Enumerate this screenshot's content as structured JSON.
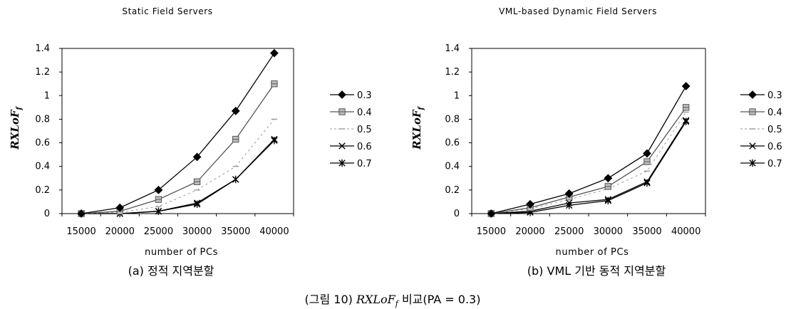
{
  "figure_caption": {
    "prefix": "(그림 10) ",
    "italic": "RXLoF",
    "sub": "f",
    "suffix": " 비교(PA = 0.3)"
  },
  "colors": {
    "s03": "#000000",
    "s04": "#777777",
    "s05": "#9a9a9a",
    "s06": "#000000",
    "s07": "#000000"
  },
  "chart_data": [
    {
      "type": "line",
      "title": "Static Field Servers",
      "caption": "(a) 정적 지역분할",
      "xlabel": "number of PCs",
      "ylabel": "RXLoF",
      "ylabel_sub": "f",
      "categories": [
        "15000",
        "20000",
        "25000",
        "30000",
        "35000",
        "40000"
      ],
      "yticks": [
        "0",
        "0.2",
        "0.4",
        "0.6",
        "0.8",
        "1",
        "1.2",
        "1.4"
      ],
      "ylim": [
        0,
        1.4
      ],
      "legend_position": "right",
      "series": [
        {
          "name": "0.3",
          "marker": "diamond",
          "values": [
            0,
            0.05,
            0.2,
            0.48,
            0.87,
            1.36
          ]
        },
        {
          "name": "0.4",
          "marker": "square",
          "values": [
            0,
            0.02,
            0.12,
            0.27,
            0.63,
            1.1
          ]
        },
        {
          "name": "0.5",
          "marker": "dash",
          "values": [
            0,
            0.01,
            0.06,
            0.2,
            0.4,
            0.8
          ]
        },
        {
          "name": "0.6",
          "marker": "x",
          "values": [
            0,
            0,
            0.02,
            0.09,
            0.29,
            0.63
          ]
        },
        {
          "name": "0.7",
          "marker": "star",
          "values": [
            0,
            0,
            0.02,
            0.08,
            0.29,
            0.62
          ]
        }
      ]
    },
    {
      "type": "line",
      "title": "VML-based Dynamic Field Servers",
      "caption": "(b) VML 기반 동적 지역분할",
      "xlabel": "number of PCs",
      "ylabel": "RXLoF",
      "ylabel_sub": "f",
      "categories": [
        "15000",
        "20000",
        "25000",
        "30000",
        "35000",
        "40000"
      ],
      "yticks": [
        "0",
        "0.2",
        "0.4",
        "0.6",
        "0.8",
        "1",
        "1.2",
        "1.4"
      ],
      "ylim": [
        0,
        1.4
      ],
      "legend_position": "right",
      "series": [
        {
          "name": "0.3",
          "marker": "diamond",
          "values": [
            0,
            0.08,
            0.17,
            0.3,
            0.51,
            1.08
          ]
        },
        {
          "name": "0.4",
          "marker": "square",
          "values": [
            0,
            0.05,
            0.14,
            0.23,
            0.44,
            0.9
          ]
        },
        {
          "name": "0.5",
          "marker": "dash",
          "values": [
            0,
            0.04,
            0.12,
            0.21,
            0.36,
            0.86
          ]
        },
        {
          "name": "0.6",
          "marker": "x",
          "values": [
            0,
            0.02,
            0.09,
            0.12,
            0.27,
            0.79
          ]
        },
        {
          "name": "0.7",
          "marker": "star",
          "values": [
            0,
            0.01,
            0.07,
            0.11,
            0.26,
            0.78
          ]
        }
      ]
    }
  ]
}
